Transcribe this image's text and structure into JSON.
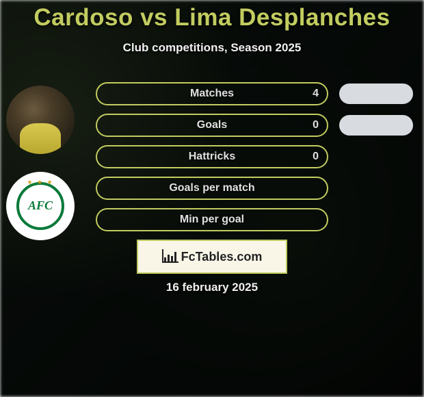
{
  "title": "Cardoso vs Lima Desplanches",
  "subtitle": "Club competitions, Season 2025",
  "date": "16 february 2025",
  "logo_text": "FcTables.com",
  "colors": {
    "accent": "#c2cc60",
    "pill": "#d8dce0",
    "text_light": "#e8e8e8"
  },
  "stats": [
    {
      "label": "Matches",
      "value": "4",
      "show_value": true,
      "border": "#c2cc60",
      "show_pill": true
    },
    {
      "label": "Goals",
      "value": "0",
      "show_value": true,
      "border": "#c2cc60",
      "show_pill": true
    },
    {
      "label": "Hattricks",
      "value": "0",
      "show_value": true,
      "border": "#c2cc60",
      "show_pill": false
    },
    {
      "label": "Goals per match",
      "value": "",
      "show_value": false,
      "border": "#c2cc60",
      "show_pill": false
    },
    {
      "label": "Min per goal",
      "value": "",
      "show_value": false,
      "border": "#c2cc60",
      "show_pill": false
    }
  ],
  "club_initials": "AFC"
}
